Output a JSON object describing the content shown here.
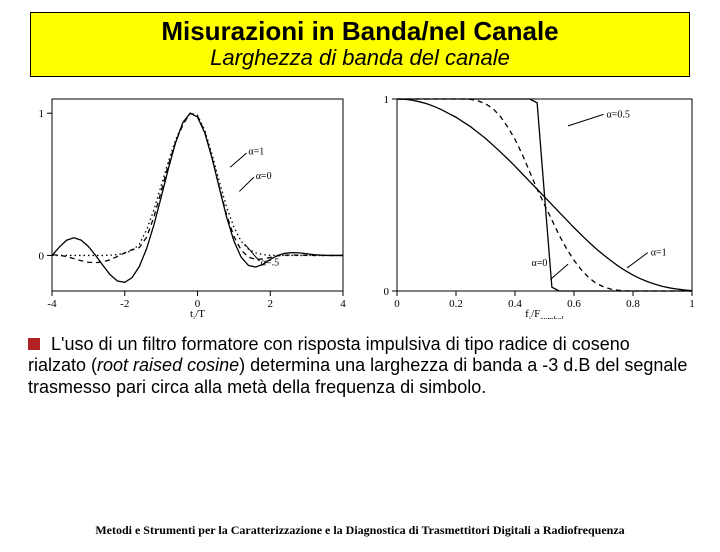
{
  "header": {
    "title": "Misurazioni in Banda/nel Canale",
    "subtitle": "Larghezza di banda del canale"
  },
  "left_chart": {
    "type": "line",
    "xlim": [
      -4,
      4
    ],
    "ylim": [
      -0.25,
      1.1
    ],
    "xticks": [
      -4,
      -2,
      0,
      2,
      4
    ],
    "yticks": [
      0,
      1
    ],
    "xlabel": "t_i/T",
    "background_color": "#ffffff",
    "axis_color": "#000000",
    "annotations": {
      "alpha0": "α=0",
      "alpha05": "α=.5",
      "alpha1": "α=1"
    },
    "series": {
      "alpha0": {
        "style": "solid",
        "color": "#000000",
        "y": [
          0,
          0.058,
          0.107,
          0.124,
          0.108,
          0.063,
          0,
          -0.07,
          -0.136,
          -0.18,
          -0.189,
          -0.156,
          -0.078,
          0.047,
          0.214,
          0.409,
          0.611,
          0.795,
          0.936,
          1,
          0.974,
          0.862,
          0.684,
          0.474,
          0.27,
          0.102,
          -0.012,
          -0.07,
          -0.082,
          -0.062,
          -0.028,
          0,
          0.015,
          0.02,
          0.018,
          0.012,
          0.006,
          0.002,
          0,
          0,
          0
        ]
      },
      "alpha05": {
        "style": "dashed",
        "color": "#000000",
        "y": [
          0.005,
          0.002,
          -0.008,
          -0.022,
          -0.037,
          -0.048,
          -0.051,
          -0.045,
          -0.03,
          -0.007,
          0.018,
          0.041,
          0.055,
          0.128,
          0.269,
          0.45,
          0.637,
          0.8,
          0.92,
          1,
          0.98,
          0.868,
          0.688,
          0.48,
          0.285,
          0.134,
          0.038,
          -0.012,
          -0.028,
          -0.025,
          -0.014,
          -0.003,
          0.002,
          0.003,
          0.002,
          0.001,
          0,
          0,
          0,
          0,
          0
        ]
      },
      "alpha1": {
        "style": "dotted",
        "color": "#000000",
        "y": [
          0,
          0,
          0,
          0,
          0,
          0,
          0,
          0,
          0.002,
          0.006,
          0.016,
          0.034,
          0.078,
          0.18,
          0.32,
          0.49,
          0.66,
          0.815,
          0.93,
          1,
          0.985,
          0.88,
          0.71,
          0.52,
          0.34,
          0.2,
          0.1,
          0.045,
          0.018,
          0.006,
          0.001,
          0,
          0,
          0,
          0,
          0,
          0,
          0,
          0,
          0,
          0
        ]
      }
    }
  },
  "right_chart": {
    "type": "line",
    "xlim": [
      0,
      1
    ],
    "ylim": [
      0,
      1
    ],
    "xticks": [
      0,
      0.2,
      0.4,
      0.6,
      0.8,
      1
    ],
    "yticks": [
      0,
      1
    ],
    "xlabel": "f_j/F_symbol",
    "background_color": "#ffffff",
    "axis_color": "#000000",
    "annotations": {
      "alpha0": "α=0",
      "alpha05": "α=0.5",
      "alpha1": "α=1"
    },
    "series": {
      "alpha0": {
        "style": "solid",
        "color": "#000000",
        "y": [
          1,
          1,
          1,
          1,
          1,
          1,
          1,
          1,
          1,
          1,
          1,
          1,
          1,
          1,
          1,
          1,
          1,
          1,
          1,
          0.98,
          0.5,
          0.02,
          0,
          0,
          0,
          0,
          0,
          0,
          0,
          0,
          0,
          0,
          0,
          0,
          0,
          0,
          0,
          0,
          0,
          0,
          0
        ]
      },
      "alpha05": {
        "style": "dashed",
        "color": "#000000",
        "y": [
          1,
          1,
          1,
          1,
          1,
          1,
          1,
          1,
          1,
          1,
          0.998,
          0.99,
          0.975,
          0.95,
          0.91,
          0.855,
          0.79,
          0.71,
          0.62,
          0.53,
          0.45,
          0.37,
          0.29,
          0.22,
          0.16,
          0.11,
          0.07,
          0.04,
          0.022,
          0.01,
          0.004,
          0.001,
          0,
          0,
          0,
          0,
          0,
          0,
          0,
          0,
          0
        ]
      },
      "alpha1": {
        "style": "solid",
        "color": "#000000",
        "y": [
          1,
          0.9985,
          0.994,
          0.986,
          0.976,
          0.962,
          0.945,
          0.925,
          0.905,
          0.88,
          0.855,
          0.825,
          0.795,
          0.76,
          0.725,
          0.688,
          0.65,
          0.61,
          0.57,
          0.53,
          0.49,
          0.45,
          0.41,
          0.37,
          0.33,
          0.292,
          0.255,
          0.22,
          0.188,
          0.158,
          0.13,
          0.105,
          0.083,
          0.064,
          0.048,
          0.035,
          0.024,
          0.016,
          0.01,
          0.005,
          0.002
        ]
      }
    }
  },
  "body": {
    "text_parts": [
      "L'uso di un filtro formatore con risposta impulsiva di tipo radice di coseno rialzato (",
      "root raised cosine",
      ") determina una larghezza di banda a -3 d.B del segnale trasmesso pari circa alla metà della frequenza di simbolo."
    ]
  },
  "footer": {
    "text": "Metodi e Strumenti per la Caratterizzazione e la Diagnostica di Trasmettitori Digitali a Radiofrequenza"
  },
  "style": {
    "header_bg": "#ffff00",
    "bullet_color": "#b22222"
  }
}
